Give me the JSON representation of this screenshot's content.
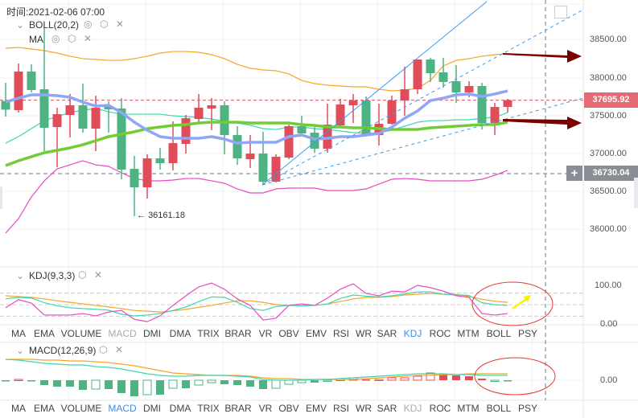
{
  "header": {
    "time_label": "时间:2021-02-06 07:00",
    "main_indicator": "BOLL(20,2)",
    "ma_indicator": "MA"
  },
  "kdj_panel": {
    "title": "KDJ(9,3,3)",
    "axis": [
      "100.00",
      "0.00"
    ]
  },
  "macd_panel": {
    "title": "MACD(12,26,9)",
    "axis": [
      "0.00"
    ]
  },
  "price_axis": [
    "38500.00",
    "38000.00",
    "37500.00",
    "37000.00",
    "36500.00",
    "36000.00"
  ],
  "current_price": "37695.92",
  "crosshair_price": "36730.04",
  "low_marker": "36161.18",
  "indicator_tabs_top": {
    "items": [
      "MA",
      "EMA",
      "VOLUME",
      "MACD",
      "DMI",
      "DMA",
      "TRIX",
      "BRAR",
      "VR",
      "OBV",
      "EMV",
      "RSI",
      "WR",
      "SAR",
      "KDJ",
      "ROC",
      "MTM",
      "BOLL",
      "PSY"
    ],
    "active": "KDJ",
    "dimmed": "MACD"
  },
  "indicator_tabs_bottom": {
    "items": [
      "MA",
      "EMA",
      "VOLUME",
      "MACD",
      "DMI",
      "DMA",
      "TRIX",
      "BRAR",
      "VR",
      "OBV",
      "EMV",
      "RSI",
      "WR",
      "SAR",
      "KDJ",
      "ROC",
      "MTM",
      "BOLL",
      "PSY"
    ],
    "active": "MACD",
    "dimmed": "KDJ"
  },
  "colors": {
    "up": "#e04c5a",
    "down": "#4db383",
    "boll_upper": "#f5a623",
    "boll_mid": "#3dd6b0",
    "boll_lower": "#e84bbf",
    "ma_fast": "#8ea6f5",
    "ma_slow": "#72cc34",
    "drawing": "#3a9bf0",
    "annotation_arrow": "#7a0000",
    "annotation_circle": "#e53935",
    "yellow_arrow": "#f5f500",
    "active_tab": "#3a8ff0"
  },
  "icons": [
    "chevron-down-icon",
    "eye-icon",
    "gear-icon",
    "close-icon",
    "expand-icon",
    "plus-icon"
  ],
  "chart_data": {
    "type": "candlestick",
    "ylim": [
      35850,
      38950
    ],
    "candles": [
      [
        37685,
        37925,
        37479,
        37570
      ],
      [
        37564,
        38181,
        37532,
        38074
      ],
      [
        38074,
        38170,
        37798,
        37830
      ],
      [
        37840,
        38649,
        37021,
        37330
      ],
      [
        37340,
        37596,
        36808,
        37510
      ],
      [
        37500,
        37777,
        37202,
        37628
      ],
      [
        37628,
        37915,
        37266,
        37319
      ],
      [
        37319,
        37755,
        37021,
        37596
      ],
      [
        37617,
        37681,
        37266,
        37574
      ],
      [
        37585,
        37723,
        36649,
        36777
      ],
      [
        36787,
        36957,
        36161.18,
        36542
      ],
      [
        36542,
        36979,
        36393,
        36925
      ],
      [
        36925,
        37064,
        36777,
        36862
      ],
      [
        36862,
        37415,
        36766,
        37127
      ],
      [
        37117,
        37500,
        36989,
        37457
      ],
      [
        37447,
        37777,
        37383,
        37596
      ],
      [
        37585,
        37723,
        37298,
        37628
      ],
      [
        37628,
        37681,
        36979,
        37234
      ],
      [
        37234,
        37351,
        36840,
        36925
      ],
      [
        36915,
        37234,
        36798,
        36989
      ],
      [
        36989,
        37277,
        36574,
        36617
      ],
      [
        36617,
        36979,
        36606,
        36947
      ],
      [
        36936,
        37372,
        36915,
        37351
      ],
      [
        37351,
        37489,
        37255,
        37255
      ],
      [
        37266,
        37340,
        37000,
        37053
      ],
      [
        37053,
        37649,
        37000,
        37372
      ],
      [
        37362,
        37713,
        37330,
        37638
      ],
      [
        37628,
        37777,
        37393,
        37691
      ],
      [
        37691,
        37745,
        37213,
        37234
      ],
      [
        37234,
        37649,
        37096,
        37383
      ],
      [
        37383,
        37755,
        37372,
        37691
      ],
      [
        37691,
        38138,
        37489,
        37840
      ],
      [
        37840,
        38234,
        37777,
        38234
      ],
      [
        38234,
        38255,
        37936,
        38053
      ],
      [
        38064,
        38255,
        37862,
        37936
      ],
      [
        37947,
        38160,
        37659,
        37798
      ],
      [
        37798,
        37947,
        37734,
        37883
      ],
      [
        37883,
        37925,
        37308,
        37393
      ],
      [
        37393,
        37659,
        37234,
        37606
      ],
      [
        37606,
        37713,
        37532,
        37695.92
      ]
    ],
    "boll_upper": [
      38383,
      38394,
      38372,
      38351,
      38319,
      38277,
      38245,
      38234,
      38223,
      38223,
      38245,
      38277,
      38319,
      38340,
      38340,
      38330,
      38298,
      38245,
      38170,
      38117,
      38096,
      38085,
      38043,
      37957,
      37915,
      37894,
      37883,
      37872,
      37872,
      37840,
      37819,
      37830,
      37851,
      37957,
      38149,
      38223,
      38245,
      38277,
      38298,
      38309
    ],
    "boll_mid": [
      37127,
      37213,
      37319,
      37425,
      37479,
      37532,
      37564,
      37585,
      37542,
      37510,
      37510,
      37510,
      37510,
      37489,
      37479,
      37468,
      37447,
      37415,
      37393,
      37362,
      37319,
      37308,
      37340,
      37340,
      37319,
      37308,
      37287,
      37266,
      37255,
      37266,
      37298,
      37351,
      37404,
      37425,
      37425,
      37436,
      37436,
      37457,
      37468,
      37532
    ],
    "boll_lower": [
      35936,
      36127,
      36415,
      36628,
      36787,
      36840,
      36894,
      36840,
      36819,
      36734,
      36659,
      36628,
      36628,
      36638,
      36659,
      36659,
      36628,
      36596,
      36521,
      36468,
      36468,
      36521,
      36532,
      36532,
      36532,
      36500,
      36500,
      36500,
      36521,
      36585,
      36649,
      36659,
      36649,
      36628,
      36628,
      36628,
      36628,
      36649,
      36702,
      36766
    ],
    "ma_fast": [
      37670,
      37723,
      37766,
      37766,
      37755,
      37734,
      37670,
      37617,
      37628,
      37532,
      37404,
      37298,
      37213,
      37191,
      37191,
      37191,
      37213,
      37181,
      37127,
      37138,
      37138,
      37138,
      37213,
      37234,
      37181,
      37191,
      37213,
      37213,
      37234,
      37255,
      37340,
      37457,
      37553,
      37691,
      37723,
      37766,
      37777,
      37745,
      37777,
      37819
    ],
    "ma_slow": [
      36830,
      36894,
      36947,
      37000,
      37032,
      37064,
      37106,
      37159,
      37213,
      37245,
      37277,
      37319,
      37340,
      37362,
      37372,
      37393,
      37404,
      37404,
      37404,
      37393,
      37393,
      37393,
      37393,
      37372,
      37362,
      37340,
      37340,
      37330,
      37330,
      37319,
      37308,
      37308,
      37308,
      37330,
      37340,
      37351,
      37362,
      37372,
      37372,
      37404
    ],
    "kdj": {
      "ylim": [
        0,
        100
      ],
      "K": [
        65,
        69,
        67,
        55,
        47,
        42,
        40,
        38,
        36,
        25,
        21,
        23,
        27,
        35,
        44,
        58,
        70,
        69,
        56,
        40,
        35,
        45,
        48,
        47,
        48,
        52,
        66,
        75,
        72,
        70,
        73,
        78,
        83,
        83,
        77,
        75,
        74,
        55,
        50,
        48
      ],
      "D": [
        73,
        71,
        69,
        65,
        60,
        56,
        52,
        48,
        44,
        40,
        35,
        33,
        31,
        34,
        38,
        43,
        48,
        54,
        60,
        60,
        56,
        50,
        48,
        48,
        48,
        52,
        58,
        65,
        69,
        69,
        71,
        75,
        77,
        79,
        77,
        77,
        71,
        64,
        59,
        56
      ],
      "J": [
        42,
        63,
        54,
        23,
        23,
        23,
        27,
        21,
        31,
        35,
        12,
        6,
        21,
        48,
        73,
        96,
        106,
        90,
        65,
        48,
        10,
        15,
        48,
        52,
        48,
        67,
        90,
        104,
        79,
        73,
        85,
        83,
        100,
        94,
        85,
        73,
        69,
        27,
        23,
        27
      ]
    },
    "macd": {
      "DIF": [
        260,
        250,
        230,
        210,
        200,
        190,
        190,
        170,
        160,
        140,
        110,
        80,
        60,
        50,
        50,
        60,
        60,
        60,
        50,
        40,
        10,
        0,
        0,
        0,
        10,
        10,
        20,
        30,
        40,
        50,
        60,
        70,
        80,
        80,
        80,
        70,
        70,
        60,
        60,
        60
      ],
      "DEA": [
        260,
        260,
        260,
        250,
        250,
        240,
        240,
        230,
        220,
        200,
        180,
        150,
        120,
        90,
        80,
        70,
        60,
        60,
        60,
        50,
        30,
        20,
        20,
        10,
        10,
        10,
        10,
        10,
        20,
        30,
        40,
        50,
        60,
        60,
        70,
        70,
        80,
        80,
        80,
        80
      ],
      "histogram": [
        -10,
        10,
        -10,
        -60,
        -80,
        -80,
        -120,
        -110,
        -110,
        -160,
        -200,
        -180,
        -180,
        -100,
        -100,
        -60,
        -30,
        -50,
        -60,
        -80,
        -110,
        -100,
        -50,
        -30,
        -30,
        -10,
        10,
        30,
        10,
        10,
        30,
        30,
        50,
        90,
        80,
        60,
        50,
        20,
        -10,
        -10
      ]
    }
  }
}
